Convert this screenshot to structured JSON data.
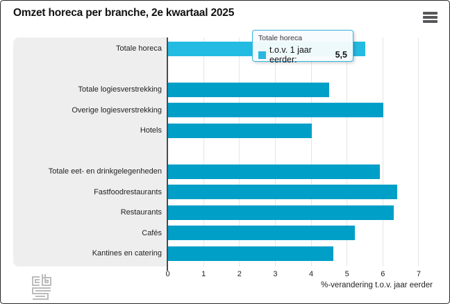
{
  "header": {
    "title": "Omzet horeca per branche, 2e kwartaal 2025",
    "menu_icon": "hamburger-icon"
  },
  "tooltip": {
    "title": "Totale horeca",
    "series_label": "t.o.v. 1 jaar eerder:",
    "value": "5,5"
  },
  "x_axis": {
    "title": "%-verandering t.o.v. jaar eerder"
  },
  "branding": {
    "logo": "cbs-logo"
  },
  "colors": {
    "bar": "#009fc8",
    "bar_highlight": "#24bbe2",
    "tooltip_border": "#32b7dd",
    "panel_bg": "#eeeeee",
    "gridline": "#e5e5e5",
    "axis": "#4a4a4a"
  },
  "chart_data": {
    "type": "bar",
    "orientation": "horizontal",
    "title": "Omzet horeca per branche, 2e kwartaal 2025",
    "xlabel": "%-verandering t.o.v. jaar eerder",
    "xlim": [
      0,
      7
    ],
    "xticks": [
      0,
      1,
      2,
      3,
      4,
      5,
      6,
      7
    ],
    "grid": true,
    "series_name": "t.o.v. 1 jaar eerder",
    "highlighted_category": "Totale horeca",
    "highlighted_value_label": "5,5",
    "groups": [
      {
        "categories": [
          "Totale horeca"
        ],
        "values": [
          5.5
        ]
      },
      {
        "categories": [
          "Totale logiesverstrekking",
          "Overige logiesverstrekking",
          "Hotels"
        ],
        "values": [
          4.5,
          6.0,
          4.0
        ]
      },
      {
        "categories": [
          "Totale eet- en drinkgelegenheden",
          "Fastfoodrestaurants",
          "Restaurants",
          "Cafés",
          "Kantines en catering"
        ],
        "values": [
          5.9,
          6.4,
          6.3,
          5.2,
          4.6
        ]
      }
    ]
  }
}
